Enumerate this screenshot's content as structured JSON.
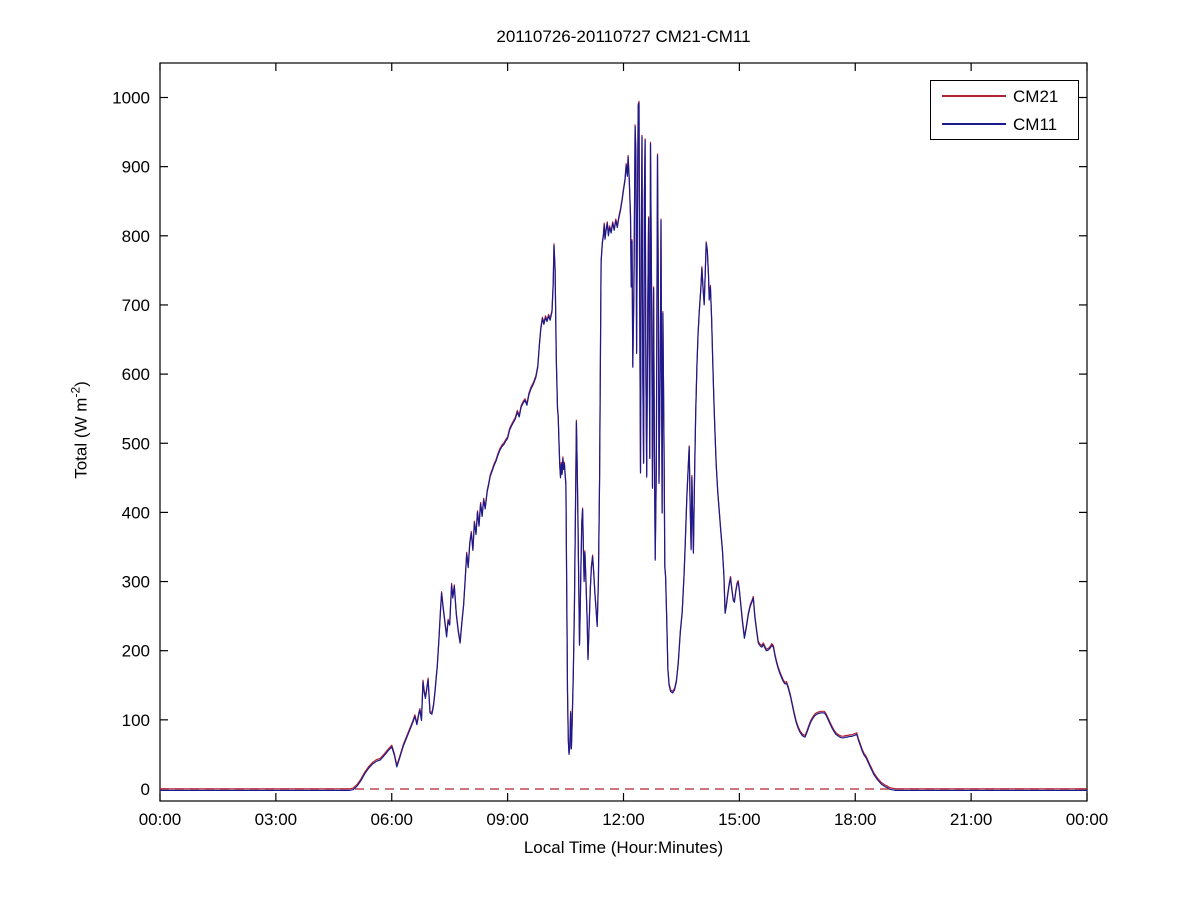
{
  "title": "20110726-20110727 CM21-CM11",
  "xlabel": "Local Time (Hour:Minutes)",
  "ylabel_parts": {
    "prefix": "Total (W m",
    "sup": "-2",
    "suffix": ")"
  },
  "chart_data": {
    "type": "line",
    "title": "20110726-20110727 CM21-CM11",
    "xlabel": "Local Time (Hour:Minutes)",
    "ylabel": "Total (W m^-2)",
    "x_unit": "hours_local_time",
    "xlim": [
      0,
      24
    ],
    "ylim": [
      -17,
      1050
    ],
    "x_ticks": [
      "00:00",
      "03:00",
      "06:00",
      "09:00",
      "12:00",
      "15:00",
      "18:00",
      "21:00",
      "00:00"
    ],
    "x_tick_hours": [
      0,
      3,
      6,
      9,
      12,
      15,
      18,
      21,
      24
    ],
    "y_ticks": [
      0,
      100,
      200,
      300,
      400,
      500,
      600,
      700,
      800,
      900,
      1000
    ],
    "grid": false,
    "legend_position": "top-right",
    "frame_color": "#000000",
    "zero_reference_line": {
      "y": 0,
      "style": "dashed",
      "color": "#b22331"
    },
    "x": [
      0,
      0.5,
      1,
      1.5,
      2,
      2.5,
      3,
      3.5,
      4,
      4.5,
      4.9,
      5,
      5.1,
      5.2,
      5.3,
      5.4,
      5.5,
      5.6,
      5.7,
      5.8,
      5.9,
      6,
      6.07,
      6.13,
      6.2,
      6.3,
      6.4,
      6.5,
      6.55,
      6.6,
      6.65,
      6.7,
      6.73,
      6.77,
      6.81,
      6.84,
      6.87,
      6.91,
      6.94,
      6.99,
      7.04,
      7.08,
      7.12,
      7.15,
      7.18,
      7.22,
      7.26,
      7.29,
      7.33,
      7.38,
      7.42,
      7.46,
      7.5,
      7.55,
      7.58,
      7.62,
      7.67,
      7.72,
      7.77,
      7.82,
      7.86,
      7.9,
      7.94,
      7.98,
      8.02,
      8.06,
      8.1,
      8.14,
      8.18,
      8.22,
      8.26,
      8.3,
      8.34,
      8.38,
      8.42,
      8.47,
      8.51,
      8.55,
      8.6,
      8.65,
      8.7,
      8.75,
      8.8,
      8.85,
      8.9,
      8.95,
      9,
      9.05,
      9.1,
      9.15,
      9.2,
      9.25,
      9.3,
      9.35,
      9.4,
      9.45,
      9.5,
      9.55,
      9.6,
      9.67,
      9.73,
      9.78,
      9.82,
      9.86,
      9.9,
      9.94,
      9.98,
      10.02,
      10.06,
      10.1,
      10.15,
      10.18,
      10.2,
      10.23,
      10.26,
      10.29,
      10.31,
      10.33,
      10.35,
      10.37,
      10.39,
      10.41,
      10.43,
      10.45,
      10.47,
      10.49,
      10.51,
      10.53,
      10.55,
      10.57,
      10.59,
      10.61,
      10.63,
      10.65,
      10.67,
      10.7,
      10.73,
      10.76,
      10.78,
      10.8,
      10.82,
      10.84,
      10.86,
      10.88,
      10.9,
      10.92,
      10.94,
      10.96,
      10.98,
      11,
      11.03,
      11.06,
      11.08,
      11.11,
      11.14,
      11.17,
      11.2,
      11.23,
      11.26,
      11.29,
      11.32,
      11.35,
      11.38,
      11.4,
      11.42,
      11.45,
      11.48,
      11.5,
      11.52,
      11.55,
      11.58,
      11.61,
      11.64,
      11.68,
      11.72,
      11.76,
      11.8,
      11.84,
      11.88,
      11.92,
      11.96,
      12,
      12.04,
      12.07,
      12.1,
      12.12,
      12.15,
      12.18,
      12.2,
      12.22,
      12.24,
      12.27,
      12.3,
      12.32,
      12.34,
      12.36,
      12.38,
      12.4,
      12.42,
      12.44,
      12.46,
      12.48,
      12.5,
      12.52,
      12.54,
      12.56,
      12.58,
      12.6,
      12.63,
      12.65,
      12.68,
      12.7,
      12.73,
      12.75,
      12.78,
      12.8,
      12.82,
      12.85,
      12.88,
      12.9,
      12.92,
      12.95,
      12.97,
      13,
      13.02,
      13.05,
      13.07,
      13.09,
      13.12,
      13.15,
      13.18,
      13.22,
      13.27,
      13.32,
      13.37,
      13.42,
      13.47,
      13.52,
      13.57,
      13.6,
      13.64,
      13.68,
      13.7,
      13.72,
      13.75,
      13.77,
      13.79,
      13.81,
      13.84,
      13.87,
      13.9,
      13.93,
      13.96,
      14,
      14.03,
      14.06,
      14.09,
      14.12,
      14.14,
      14.17,
      14.2,
      14.22,
      14.25,
      14.28,
      14.31,
      14.34,
      14.37,
      14.4,
      14.44,
      14.48,
      14.52,
      14.56,
      14.6,
      14.63,
      14.66,
      14.7,
      14.74,
      14.77,
      14.8,
      14.84,
      14.87,
      14.91,
      14.94,
      14.97,
      15,
      15.04,
      15.08,
      15.13,
      15.18,
      15.23,
      15.28,
      15.33,
      15.36,
      15.4,
      15.45,
      15.49,
      15.54,
      15.58,
      15.62,
      15.66,
      15.7,
      15.75,
      15.8,
      15.84,
      15.88,
      15.92,
      15.96,
      16,
      16.05,
      16.1,
      16.14,
      16.18,
      16.22,
      16.27,
      16.32,
      16.37,
      16.42,
      16.47,
      16.52,
      16.57,
      16.62,
      16.66,
      16.7,
      16.75,
      16.8,
      16.85,
      16.9,
      16.95,
      17,
      17.05,
      17.1,
      17.15,
      17.2,
      17.25,
      17.3,
      17.35,
      17.4,
      17.45,
      17.5,
      17.55,
      17.6,
      17.65,
      17.7,
      17.75,
      17.8,
      17.85,
      17.9,
      17.95,
      18,
      18.04,
      18.08,
      18.13,
      18.18,
      18.23,
      18.28,
      18.33,
      18.38,
      18.43,
      18.48,
      18.53,
      18.58,
      18.63,
      18.68,
      18.73,
      18.78,
      18.83,
      18.88,
      18.95,
      19.05,
      19.2,
      19.5,
      20,
      20.5,
      21,
      21.5,
      22,
      22.5,
      23,
      23.5,
      24
    ],
    "series": [
      {
        "name": "CM21",
        "color": "#b22331",
        "values": [
          -2,
          -2,
          -2,
          -2,
          -2,
          -2,
          -2,
          -2,
          -2,
          -2,
          -2,
          -1,
          4,
          12,
          22,
          30,
          36,
          40,
          42,
          48,
          55,
          61,
          48,
          32,
          44,
          62,
          76,
          90,
          97,
          105,
          93,
          108,
          114,
          99,
          155,
          140,
          131,
          145,
          158,
          110,
          108,
          120,
          140,
          160,
          177,
          215,
          255,
          283,
          262,
          238,
          220,
          243,
          237,
          295,
          276,
          293,
          252,
          228,
          211,
          242,
          265,
          300,
          340,
          320,
          355,
          370,
          345,
          385,
          368,
          400,
          380,
          412,
          394,
          418,
          405,
          430,
          440,
          452,
          460,
          468,
          474,
          483,
          490,
          495,
          498,
          503,
          507,
          519,
          525,
          530,
          535,
          545,
          538,
          552,
          558,
          562,
          555,
          570,
          578,
          586,
          595,
          610,
          640,
          665,
          680,
          672,
          682,
          676,
          684,
          678,
          690,
          730,
          786,
          750,
          620,
          550,
          538,
          500,
          466,
          450,
          470,
          455,
          478,
          462,
          470,
          452,
          440,
          290,
          140,
          70,
          50,
          60,
          110,
          58,
          92,
          165,
          260,
          420,
          531,
          465,
          394,
          300,
          208,
          258,
          325,
          385,
          404,
          355,
          300,
          342,
          298,
          240,
          187,
          235,
          288,
          320,
          336,
          310,
          282,
          258,
          235,
          300,
          450,
          600,
          762,
          788,
          800,
          816,
          795,
          808,
          818,
          800,
          812,
          804,
          818,
          808,
          822,
          812,
          826,
          836,
          850,
          866,
          880,
          902,
          886,
          914,
          878,
          828,
          726,
          792,
          610,
          720,
          958,
          918,
          630,
          830,
          988,
          992,
          700,
          457,
          810,
          943,
          598,
          471,
          855,
          938,
          600,
          451,
          700,
          825,
          478,
          933,
          690,
          435,
          724,
          495,
          331,
          460,
          916,
          731,
          442,
          605,
          822,
          399,
          688,
          480,
          321,
          306,
          240,
          172,
          150,
          141,
          139,
          143,
          155,
          182,
          226,
          255,
          310,
          356,
          420,
          470,
          494,
          428,
          346,
          451,
          398,
          341,
          455,
          543,
          610,
          655,
          688,
          722,
          753,
          722,
          700,
          752,
          789,
          778,
          742,
          707,
          726,
          680,
          620,
          560,
          514,
          468,
          430,
          400,
          372,
          345,
          308,
          254,
          263,
          281,
          296,
          305,
          291,
          273,
          270,
          286,
          296,
          299,
          286,
          264,
          241,
          218,
          233,
          252,
          264,
          271,
          276,
          249,
          226,
          211,
          207,
          205,
          209,
          204,
          200,
          201,
          204,
          208,
          205,
          193,
          183,
          175,
          167,
          160,
          155,
          152,
          153,
          145,
          134,
          121,
          108,
          96,
          88,
          82,
          78,
          76,
          75,
          82,
          90,
          97,
          102,
          106,
          108,
          109,
          110,
          110,
          110,
          106,
          100,
          94,
          88,
          83,
          79,
          77,
          75,
          74,
          74,
          75,
          75,
          76,
          76,
          77,
          78,
          79,
          71,
          63,
          55,
          49,
          45,
          39,
          33,
          27,
          21,
          17,
          13,
          10,
          7,
          5,
          3,
          2,
          0,
          -1,
          -2,
          -2,
          -2,
          -2,
          -2,
          -2,
          -2,
          -2,
          -2,
          -2,
          -2,
          -2
        ]
      },
      {
        "name": "CM11",
        "color": "#1a1a8e",
        "values": [
          -2,
          -2,
          -2,
          -2,
          -2,
          -2,
          -2,
          -2,
          -2,
          -2,
          -2,
          -1,
          4,
          12,
          22,
          30,
          36,
          40,
          42,
          48,
          55,
          61,
          48,
          32,
          44,
          62,
          76,
          90,
          97,
          105,
          93,
          108,
          114,
          99,
          155,
          140,
          131,
          145,
          158,
          110,
          108,
          120,
          140,
          160,
          177,
          215,
          255,
          283,
          262,
          238,
          220,
          243,
          237,
          295,
          276,
          293,
          252,
          228,
          211,
          242,
          265,
          300,
          340,
          320,
          355,
          370,
          345,
          385,
          368,
          400,
          380,
          412,
          394,
          418,
          405,
          430,
          440,
          452,
          460,
          468,
          474,
          483,
          490,
          495,
          498,
          503,
          507,
          519,
          525,
          530,
          535,
          545,
          538,
          552,
          558,
          562,
          555,
          570,
          578,
          586,
          595,
          610,
          640,
          665,
          680,
          672,
          682,
          676,
          684,
          678,
          690,
          730,
          786,
          750,
          620,
          550,
          538,
          500,
          466,
          450,
          470,
          455,
          478,
          462,
          470,
          452,
          440,
          290,
          140,
          70,
          50,
          60,
          110,
          58,
          92,
          165,
          260,
          420,
          531,
          465,
          394,
          300,
          208,
          258,
          325,
          385,
          404,
          355,
          300,
          342,
          298,
          240,
          187,
          235,
          288,
          320,
          336,
          310,
          282,
          258,
          235,
          300,
          450,
          600,
          762,
          788,
          800,
          816,
          795,
          808,
          818,
          800,
          812,
          804,
          818,
          808,
          822,
          812,
          826,
          836,
          850,
          866,
          880,
          902,
          886,
          914,
          878,
          828,
          726,
          792,
          610,
          720,
          958,
          918,
          630,
          830,
          988,
          992,
          700,
          457,
          810,
          943,
          598,
          471,
          855,
          938,
          600,
          451,
          700,
          825,
          478,
          933,
          690,
          435,
          724,
          495,
          331,
          460,
          916,
          731,
          442,
          605,
          822,
          399,
          688,
          480,
          321,
          306,
          240,
          172,
          150,
          141,
          139,
          143,
          155,
          182,
          226,
          255,
          310,
          356,
          420,
          470,
          494,
          428,
          346,
          451,
          398,
          341,
          455,
          543,
          610,
          655,
          688,
          722,
          753,
          722,
          700,
          752,
          789,
          778,
          742,
          707,
          726,
          680,
          620,
          560,
          514,
          468,
          430,
          400,
          372,
          345,
          308,
          254,
          263,
          281,
          296,
          305,
          291,
          273,
          270,
          286,
          296,
          299,
          286,
          264,
          241,
          218,
          233,
          252,
          264,
          271,
          276,
          249,
          226,
          211,
          207,
          205,
          209,
          204,
          200,
          201,
          204,
          208,
          205,
          193,
          183,
          175,
          167,
          160,
          155,
          152,
          153,
          145,
          134,
          121,
          108,
          96,
          88,
          82,
          78,
          76,
          75,
          82,
          90,
          97,
          102,
          106,
          108,
          109,
          110,
          110,
          110,
          106,
          100,
          94,
          88,
          83,
          79,
          77,
          75,
          74,
          74,
          75,
          75,
          76,
          76,
          77,
          78,
          79,
          71,
          63,
          55,
          49,
          45,
          39,
          33,
          27,
          21,
          17,
          13,
          10,
          7,
          5,
          3,
          2,
          0,
          -1,
          -2,
          -2,
          -2,
          -2,
          -2,
          -2,
          -2,
          -2,
          -2,
          -2,
          -2,
          -2
        ]
      }
    ]
  }
}
